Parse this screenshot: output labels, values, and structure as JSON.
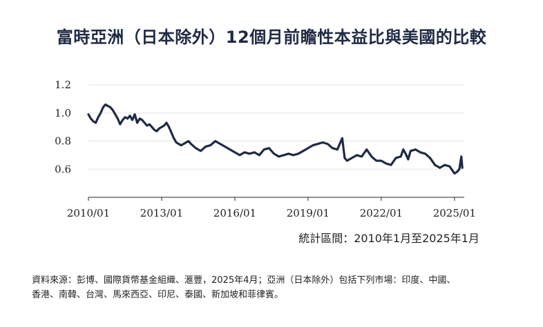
{
  "chart_data": {
    "type": "line",
    "title": "富時亞洲（日本除外）12個月前瞻性本益比與美國的比較",
    "xlabel": "",
    "ylabel": "",
    "x_ticks": [
      {
        "label": "2010/01",
        "year": 2010.0
      },
      {
        "label": "2013/01",
        "year": 2013.0
      },
      {
        "label": "2016/01",
        "year": 2016.0
      },
      {
        "label": "2019/01",
        "year": 2019.0
      },
      {
        "label": "2022/01",
        "year": 2022.0
      },
      {
        "label": "2025/01",
        "year": 2025.0
      }
    ],
    "y_ticks": [
      0.6,
      0.8,
      1.0,
      1.2
    ],
    "xlim": [
      2010.0,
      2025.4
    ],
    "ylim": [
      0.4,
      1.2
    ],
    "grid": true,
    "series": [
      {
        "name": "",
        "color": "#1f2a44",
        "points": [
          [
            2010.0,
            0.99
          ],
          [
            2010.1,
            0.96
          ],
          [
            2010.2,
            0.94
          ],
          [
            2010.3,
            0.93
          ],
          [
            2010.4,
            0.97
          ],
          [
            2010.5,
            1.0
          ],
          [
            2010.6,
            1.04
          ],
          [
            2010.7,
            1.06
          ],
          [
            2010.8,
            1.05
          ],
          [
            2010.9,
            1.04
          ],
          [
            2011.0,
            1.02
          ],
          [
            2011.1,
            0.99
          ],
          [
            2011.2,
            0.96
          ],
          [
            2011.3,
            0.92
          ],
          [
            2011.4,
            0.95
          ],
          [
            2011.5,
            0.97
          ],
          [
            2011.6,
            0.96
          ],
          [
            2011.7,
            0.98
          ],
          [
            2011.8,
            0.95
          ],
          [
            2011.9,
            0.99
          ],
          [
            2012.0,
            0.93
          ],
          [
            2012.1,
            0.96
          ],
          [
            2012.2,
            0.95
          ],
          [
            2012.3,
            0.93
          ],
          [
            2012.4,
            0.91
          ],
          [
            2012.5,
            0.92
          ],
          [
            2012.6,
            0.9
          ],
          [
            2012.7,
            0.88
          ],
          [
            2012.8,
            0.87
          ],
          [
            2012.9,
            0.89
          ],
          [
            2013.0,
            0.9
          ],
          [
            2013.1,
            0.91
          ],
          [
            2013.2,
            0.93
          ],
          [
            2013.3,
            0.9
          ],
          [
            2013.4,
            0.86
          ],
          [
            2013.5,
            0.82
          ],
          [
            2013.6,
            0.79
          ],
          [
            2013.7,
            0.78
          ],
          [
            2013.8,
            0.77
          ],
          [
            2013.9,
            0.78
          ],
          [
            2014.0,
            0.79
          ],
          [
            2014.1,
            0.8
          ],
          [
            2014.2,
            0.78
          ],
          [
            2014.4,
            0.75
          ],
          [
            2014.6,
            0.73
          ],
          [
            2014.8,
            0.76
          ],
          [
            2015.0,
            0.77
          ],
          [
            2015.2,
            0.8
          ],
          [
            2015.4,
            0.78
          ],
          [
            2015.6,
            0.76
          ],
          [
            2015.8,
            0.74
          ],
          [
            2016.0,
            0.72
          ],
          [
            2016.2,
            0.7
          ],
          [
            2016.4,
            0.72
          ],
          [
            2016.6,
            0.71
          ],
          [
            2016.8,
            0.72
          ],
          [
            2017.0,
            0.7
          ],
          [
            2017.2,
            0.74
          ],
          [
            2017.4,
            0.75
          ],
          [
            2017.6,
            0.71
          ],
          [
            2017.8,
            0.69
          ],
          [
            2018.0,
            0.7
          ],
          [
            2018.2,
            0.71
          ],
          [
            2018.4,
            0.7
          ],
          [
            2018.6,
            0.71
          ],
          [
            2018.8,
            0.73
          ],
          [
            2019.0,
            0.75
          ],
          [
            2019.2,
            0.77
          ],
          [
            2019.4,
            0.78
          ],
          [
            2019.6,
            0.79
          ],
          [
            2019.8,
            0.78
          ],
          [
            2020.0,
            0.75
          ],
          [
            2020.2,
            0.74
          ],
          [
            2020.4,
            0.82
          ],
          [
            2020.5,
            0.68
          ],
          [
            2020.6,
            0.66
          ],
          [
            2020.8,
            0.68
          ],
          [
            2021.0,
            0.7
          ],
          [
            2021.2,
            0.69
          ],
          [
            2021.4,
            0.74
          ],
          [
            2021.6,
            0.69
          ],
          [
            2021.8,
            0.66
          ],
          [
            2022.0,
            0.66
          ],
          [
            2022.2,
            0.64
          ],
          [
            2022.4,
            0.63
          ],
          [
            2022.6,
            0.68
          ],
          [
            2022.8,
            0.69
          ],
          [
            2022.9,
            0.74
          ],
          [
            2023.0,
            0.71
          ],
          [
            2023.1,
            0.67
          ],
          [
            2023.2,
            0.73
          ],
          [
            2023.4,
            0.74
          ],
          [
            2023.6,
            0.72
          ],
          [
            2023.8,
            0.71
          ],
          [
            2024.0,
            0.68
          ],
          [
            2024.2,
            0.63
          ],
          [
            2024.4,
            0.61
          ],
          [
            2024.6,
            0.63
          ],
          [
            2024.8,
            0.62
          ],
          [
            2025.0,
            0.57
          ],
          [
            2025.1,
            0.58
          ],
          [
            2025.2,
            0.6
          ],
          [
            2025.28,
            0.69
          ],
          [
            2025.32,
            0.61
          ]
        ]
      }
    ]
  },
  "footer": {
    "period": "統計區間：2010年1月至2025年1月",
    "source_line1": "資料來源：彭博、國際貨幣基金組織、滙豐，2025年4月；亞洲（日本除外）包括下列市場：印度、中國、",
    "source_line2": "香港、南韓、台灣、馬來西亞、印尼、泰國、新加坡和菲律賓。"
  }
}
